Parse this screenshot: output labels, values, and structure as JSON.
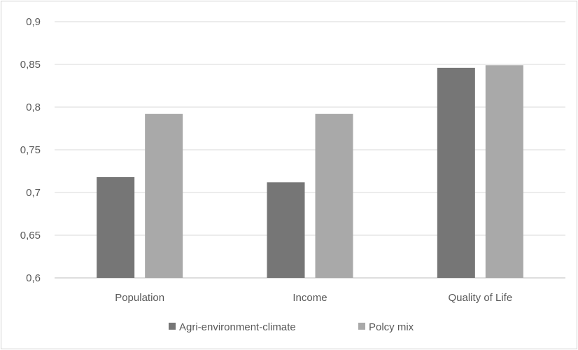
{
  "chart_data": {
    "type": "bar",
    "categories": [
      "Population",
      "Income",
      "Quality of Life"
    ],
    "series": [
      {
        "name": "Agri-environment-climate",
        "color": "#767676",
        "values": [
          0.718,
          0.712,
          0.846
        ]
      },
      {
        "name": "Polcy mix",
        "color": "#a9a9a9",
        "values": [
          0.792,
          0.792,
          0.849
        ]
      }
    ],
    "y_ticks": [
      "0,9",
      "0,85",
      "0,8",
      "0,75",
      "0,7",
      "0,65",
      "0,6"
    ],
    "y_tick_values": [
      0.9,
      0.85,
      0.8,
      0.75,
      0.7,
      0.65,
      0.6
    ],
    "ylim": [
      0.6,
      0.9
    ],
    "grid": true,
    "legend_position": "bottom",
    "title": "",
    "xlabel": "",
    "ylabel": ""
  }
}
